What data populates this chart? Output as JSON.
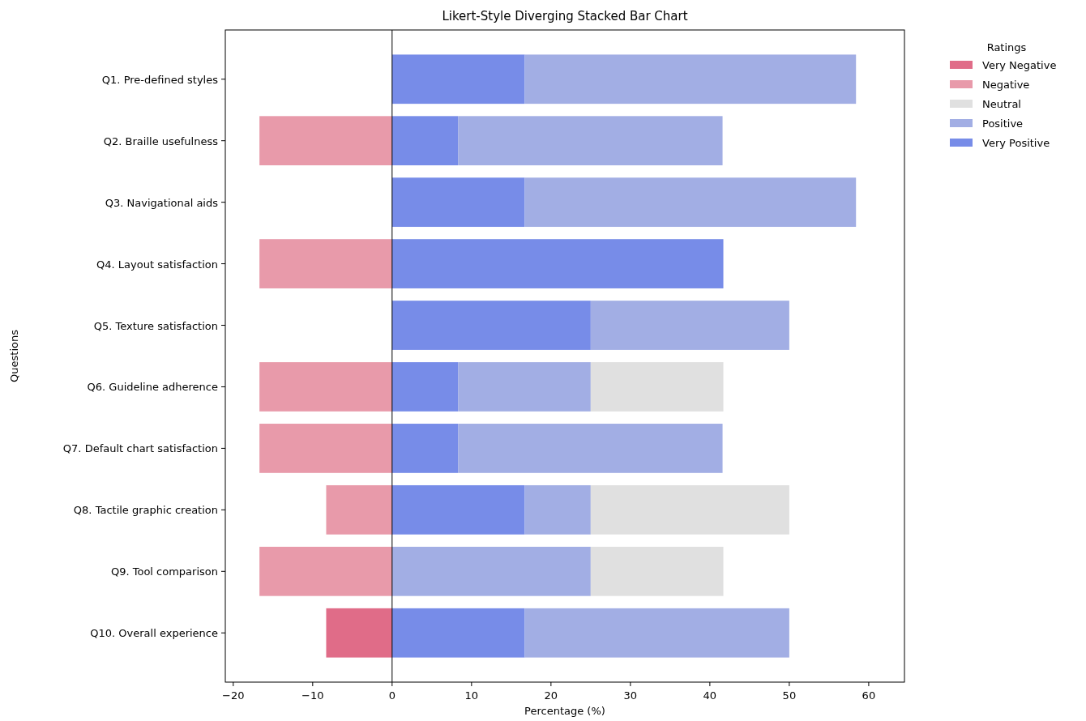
{
  "chart_data": {
    "type": "bar",
    "orientation": "horizontal",
    "stacked": true,
    "title": "Likert-Style Diverging Stacked Bar Chart",
    "xlabel": "Percentage (%)",
    "ylabel": "Questions",
    "legend_title": "Ratings",
    "legend": "top right",
    "grid": false,
    "categories": [
      "Q1. Pre-defined styles",
      "Q2. Braille usefulness",
      "Q3. Navigational aids",
      "Q4. Layout satisfaction",
      "Q5. Texture satisfaction",
      "Q6. Guideline adherence",
      "Q7. Default chart satisfaction",
      "Q8. Tactile graphic creation",
      "Q9. Tool comparison",
      "Q10. Overall experience"
    ],
    "series": [
      {
        "name": "Very Positive",
        "color": "#778ce8",
        "values": [
          16.7,
          8.3,
          16.7,
          41.7,
          25,
          8.3,
          8.3,
          16.7,
          0,
          16.7
        ]
      },
      {
        "name": "Positive",
        "color": "#a2aee4",
        "values": [
          41.7,
          33.3,
          41.7,
          0,
          25,
          16.7,
          33.3,
          8.3,
          25,
          33.3
        ]
      },
      {
        "name": "Neutral",
        "color": "#e0e0e0",
        "values": [
          0,
          0,
          0,
          0,
          0,
          16.7,
          0,
          25,
          16.7,
          0
        ]
      },
      {
        "name": "Negative",
        "color": "#e89aaa",
        "values": [
          0,
          -16.7,
          0,
          -16.7,
          0,
          -16.7,
          -16.7,
          -8.3,
          -16.7,
          0
        ]
      },
      {
        "name": "Very Negative",
        "color": "#e06c88",
        "values": [
          0,
          0,
          0,
          0,
          0,
          0,
          0,
          0,
          0,
          -8.3
        ]
      }
    ],
    "xlim": [
      -21,
      64.5
    ],
    "xticks": [
      -20,
      -10,
      0,
      10,
      20,
      30,
      40,
      50,
      60
    ],
    "ref_lines": [
      {
        "axis": "x",
        "value": 0,
        "color": "#000000"
      }
    ]
  }
}
